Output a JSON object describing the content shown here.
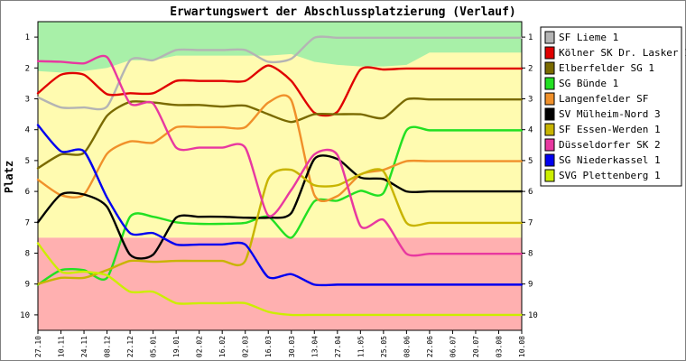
{
  "chart_data": {
    "type": "line",
    "title": "Erwartungswert der Abschlussplatzierung (Verlauf)",
    "ylabel": "Platz",
    "xlabel": "",
    "ylim": [
      0.5,
      10.5
    ],
    "y_inverted": true,
    "yticks": [
      1,
      2,
      3,
      4,
      5,
      6,
      7,
      8,
      9,
      10
    ],
    "categories": [
      "27.10",
      "10.11",
      "24.11",
      "08.12",
      "22.12",
      "05.01",
      "19.01",
      "02.02",
      "16.02",
      "02.03",
      "16.03",
      "30.03",
      "13.04",
      "27.04",
      "11.05",
      "25.05",
      "08.06",
      "22.06",
      "06.07",
      "20.07",
      "03.08",
      "10.08"
    ],
    "legend_position": "right",
    "background_zones": [
      {
        "name": "top",
        "color": "#a8f0a8",
        "band_top": [
          1.1,
          1.05,
          1.05,
          1.0,
          1.0,
          1.0,
          1.0,
          1.0,
          1.0,
          1.0,
          1.0,
          1.0,
          1.0,
          1.0,
          1.0,
          1.0,
          1.0,
          1.0,
          1.0,
          1.0,
          1.0,
          1.0
        ],
        "band_bottom": [
          2.1,
          2.15,
          2.1,
          2.0,
          1.75,
          1.75,
          1.6,
          1.6,
          1.6,
          1.6,
          1.6,
          1.55,
          1.8,
          1.9,
          1.95,
          1.95,
          1.9,
          1.5,
          1.5,
          1.5,
          1.5,
          1.5
        ]
      },
      {
        "name": "middle",
        "color": "#fffbb0",
        "from": 0.5,
        "to": 7.5
      },
      {
        "name": "bottom",
        "color": "#ffb0b0",
        "from": 7.5,
        "to": 10.5
      }
    ],
    "series": [
      {
        "name": "SF Lieme 1",
        "color": "#b4b4b4",
        "values": [
          2.95,
          3.28,
          3.28,
          3.25,
          1.75,
          1.75,
          1.42,
          1.42,
          1.42,
          1.42,
          1.8,
          1.7,
          1.02,
          1.02,
          1.02,
          1.02,
          1.02,
          1.02,
          1.02,
          1.02,
          1.02,
          1.02
        ]
      },
      {
        "name": "Kölner SK Dr. Lasker 1",
        "color": "#e00000",
        "values": [
          2.82,
          2.22,
          2.22,
          2.85,
          2.82,
          2.82,
          2.42,
          2.42,
          2.42,
          2.42,
          1.92,
          2.42,
          3.45,
          3.42,
          2.05,
          2.05,
          2.02,
          2.02,
          2.02,
          2.02,
          2.02,
          2.02
        ]
      },
      {
        "name": "Elberfelder SG 1",
        "color": "#7a6a00",
        "values": [
          5.25,
          4.8,
          4.75,
          3.55,
          3.1,
          3.12,
          3.2,
          3.2,
          3.25,
          3.22,
          3.5,
          3.75,
          3.5,
          3.5,
          3.5,
          3.62,
          3.02,
          3.02,
          3.02,
          3.02,
          3.02,
          3.02
        ]
      },
      {
        "name": "SG Bünde 1",
        "color": "#22e022",
        "values": [
          9.02,
          8.55,
          8.55,
          8.8,
          6.82,
          6.82,
          7.0,
          7.05,
          7.05,
          7.02,
          6.82,
          7.5,
          6.32,
          6.3,
          5.98,
          6.05,
          4.02,
          4.02,
          4.02,
          4.02,
          4.02,
          4.02
        ]
      },
      {
        "name": "Langenfelder SF",
        "color": "#f0902a",
        "values": [
          5.62,
          6.12,
          6.1,
          4.78,
          4.38,
          4.42,
          3.92,
          3.92,
          3.92,
          3.92,
          3.12,
          3.05,
          6.12,
          6.15,
          5.45,
          5.3,
          5.02,
          5.02,
          5.02,
          5.02,
          5.02,
          5.02
        ]
      },
      {
        "name": "SV Mülheim-Nord 3",
        "color": "#000000",
        "values": [
          7.0,
          6.1,
          6.1,
          6.5,
          8.05,
          8.05,
          6.85,
          6.82,
          6.82,
          6.85,
          6.85,
          6.7,
          4.95,
          4.95,
          5.55,
          5.6,
          6.0,
          6.0,
          6.0,
          6.0,
          6.0,
          6.0
        ]
      },
      {
        "name": "SF Essen-Werden 1",
        "color": "#c8b400",
        "values": [
          9.0,
          8.8,
          8.8,
          8.55,
          8.25,
          8.28,
          8.25,
          8.25,
          8.25,
          8.25,
          5.6,
          5.3,
          5.8,
          5.8,
          5.45,
          5.35,
          7.02,
          7.02,
          7.02,
          7.02,
          7.02,
          7.02
        ]
      },
      {
        "name": "Düsseldorfer SK 2",
        "color": "#e838a0",
        "values": [
          1.78,
          1.8,
          1.85,
          1.65,
          3.15,
          3.15,
          4.58,
          4.58,
          4.58,
          4.58,
          6.78,
          5.95,
          4.8,
          4.82,
          7.12,
          6.92,
          8.02,
          8.02,
          8.02,
          8.02,
          8.02,
          8.02
        ]
      },
      {
        "name": "SG Niederkassel 1",
        "color": "#0000f0",
        "values": [
          3.85,
          4.7,
          4.7,
          6.2,
          7.35,
          7.35,
          7.72,
          7.72,
          7.72,
          7.72,
          8.78,
          8.68,
          9.02,
          9.02,
          9.02,
          9.02,
          9.02,
          9.02,
          9.02,
          9.02,
          9.02,
          9.02
        ]
      },
      {
        "name": "SVG Plettenberg 1",
        "color": "#ccee00",
        "values": [
          7.68,
          8.6,
          8.6,
          8.72,
          9.25,
          9.25,
          9.62,
          9.62,
          9.62,
          9.62,
          9.9,
          10.0,
          10.0,
          10.0,
          10.0,
          10.0,
          10.0,
          10.0,
          10.0,
          10.0,
          10.0,
          10.0
        ]
      }
    ]
  }
}
